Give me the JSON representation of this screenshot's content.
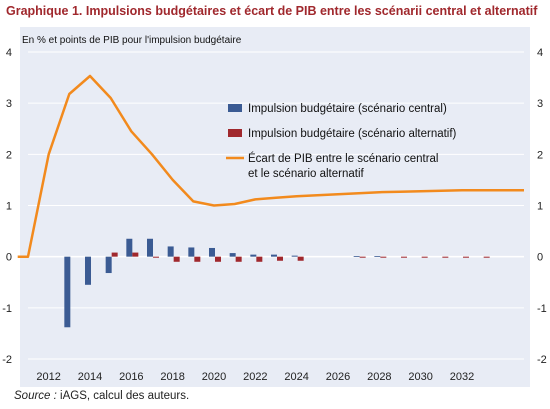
{
  "title": "Graphique 1. Impulsions budgétaires et écart de PIB entre les scénarii central et alternatif",
  "source_prefix": "Source :",
  "source_text": " iAGS, calcul des auteurs.",
  "chart_data": {
    "type": "bar",
    "title": "Graphique 1. Impulsions budgétaires et écart de PIB entre les scénarii central et alternatif",
    "subtitle": "En % et points de PIB pour l'impulsion budgétaire",
    "xlim": [
      2011,
      2035
    ],
    "ylim": [
      -2,
      4
    ],
    "y_ticks": [
      -2,
      -1,
      0,
      1,
      2,
      3,
      4
    ],
    "y_tick_labels": [
      "-2",
      "-1",
      "0",
      "1",
      "2",
      "3",
      "4"
    ],
    "x_ticks": [
      2012,
      2014,
      2016,
      2018,
      2020,
      2022,
      2024,
      2026,
      2028,
      2030,
      2032
    ],
    "x_tick_labels": [
      "2012",
      "2014",
      "2016",
      "2018",
      "2020",
      "2022",
      "2024",
      "2026",
      "2028",
      "2030",
      "2032"
    ],
    "legend_position": "top-right",
    "categories": [
      2011,
      2012,
      2013,
      2014,
      2015,
      2016,
      2017,
      2018,
      2019,
      2020,
      2021,
      2022,
      2023,
      2024,
      2025,
      2026,
      2027,
      2028,
      2029,
      2030,
      2031,
      2032,
      2033,
      2034
    ],
    "bar_series": [
      {
        "name": "Impulsion budgétaire (scénario central)",
        "color": "#3b5b93",
        "values": [
          0,
          0,
          -1.38,
          -0.55,
          -0.32,
          0.35,
          0.35,
          0.2,
          0.18,
          0.17,
          0.07,
          0.04,
          0.04,
          0.02,
          0.0,
          0.0,
          0.01,
          0.01,
          0.0,
          0.0,
          0.0,
          0.0,
          0.0,
          0.0
        ]
      },
      {
        "name": "Impulsion budgétaire (scénario alternatif)",
        "color": "#a0282d",
        "values": [
          0,
          0,
          0.0,
          0.0,
          0.08,
          0.08,
          -0.02,
          -0.1,
          -0.1,
          -0.1,
          -0.1,
          -0.1,
          -0.08,
          -0.08,
          0.0,
          0.0,
          -0.02,
          -0.02,
          -0.02,
          -0.02,
          -0.02,
          -0.02,
          -0.02,
          0.0
        ]
      }
    ],
    "line_series": {
      "name": "Écart de PIB entre le scénario central et le scénario alternatif",
      "color": "#f28a1d",
      "x": [
        2010.5,
        2011,
        2012,
        2013,
        2014,
        2015,
        2016,
        2017,
        2018,
        2019,
        2020,
        2021,
        2022,
        2023,
        2024,
        2025,
        2026,
        2027,
        2028,
        2029,
        2030,
        2031,
        2032,
        2033,
        2034,
        2035
      ],
      "values": [
        0,
        0,
        2.0,
        3.18,
        3.53,
        3.1,
        2.45,
        2.0,
        1.5,
        1.08,
        1.0,
        1.03,
        1.12,
        1.15,
        1.18,
        1.2,
        1.22,
        1.24,
        1.26,
        1.27,
        1.28,
        1.29,
        1.3,
        1.3,
        1.3,
        1.3
      ]
    },
    "legend_labels": [
      "Impulsion budgétaire (scénario central)",
      "Impulsion budgétaire (scénario alternatif)",
      "Écart de PIB entre le scénario central",
      "et le scénario alternatif"
    ]
  }
}
